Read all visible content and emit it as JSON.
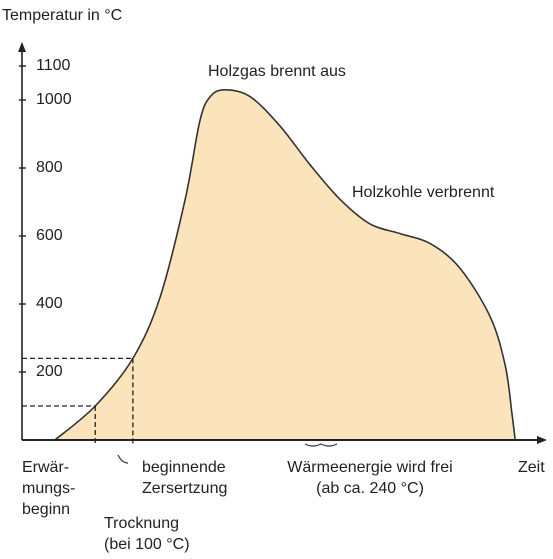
{
  "chart_data": {
    "type": "area",
    "y_label": "Temperatur in °C",
    "x_label": "Zeit",
    "x": [
      6.3,
      14,
      21.2,
      26.4,
      31.2,
      34,
      36,
      38.8,
      43.6,
      49.3,
      55.1,
      60.8,
      66.5,
      72.3,
      78,
      83.7,
      89.5,
      92.4,
      93.7,
      94.3
    ],
    "values": [
      0,
      100,
      240,
      420,
      708,
      938,
      1010,
      1030,
      1010,
      924,
      809,
      708,
      636,
      607,
      578,
      506,
      363,
      219,
      75,
      0
    ],
    "color": "#fbe4bb",
    "xlim": [
      0,
      100
    ],
    "ylim": [
      0,
      1100
    ],
    "yticks": [
      200,
      400,
      600,
      800,
      1000,
      1100
    ],
    "annotations": [
      [
        "Holzgas brennt aus"
      ],
      [
        "Holzkohle verbrennt"
      ],
      [
        "Erwär-",
        "mungs-",
        "beginn"
      ],
      [
        "Trocknung",
        "(bei 100 °C)"
      ],
      [
        "beginnende",
        "Zersertzung"
      ],
      [
        "Wärmeenergie wird frei",
        "(ab ca. 240 °C)"
      ]
    ]
  }
}
